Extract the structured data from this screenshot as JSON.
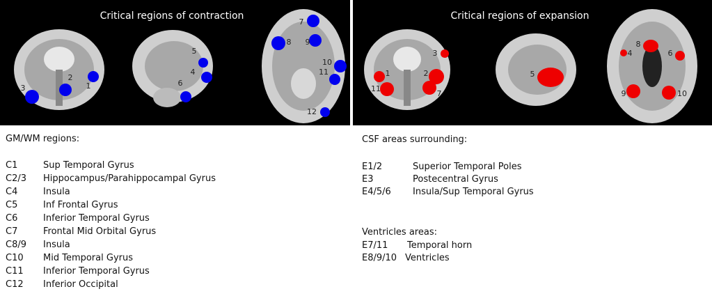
{
  "panels": [
    {
      "title": "Critical regions of contraction",
      "markers": [
        "1",
        "2",
        "3",
        "5",
        "4",
        "6",
        "7",
        "8",
        "9",
        "10",
        "11",
        "12"
      ]
    },
    {
      "title": "Critical regions of expansion",
      "markers": [
        "1",
        "11",
        "2",
        "7",
        "3",
        "5",
        "8",
        "4",
        "6",
        "9",
        "10"
      ]
    }
  ],
  "legend_left": {
    "heading": "GM/WM regions:",
    "items": [
      {
        "code": "C1",
        "name": "Sup Temporal Gyrus"
      },
      {
        "code": "C2/3",
        "name": "Hippocampus/Parahippocampal Gyrus"
      },
      {
        "code": "C4",
        "name": "Insula"
      },
      {
        "code": "C5",
        "name": "Inf Frontal Gyrus"
      },
      {
        "code": "C6",
        "name": "Inferior Temporal Gyrus"
      },
      {
        "code": "C7",
        "name": "Frontal Mid Orbital Gyrus"
      },
      {
        "code": "C8/9",
        "name": "Insula"
      },
      {
        "code": "C10",
        "name": "Mid Temporal Gyrus"
      },
      {
        "code": "C11",
        "name": "Inferior Temporal Gyrus"
      },
      {
        "code": "C12",
        "name": "Inferior Occipital"
      }
    ]
  },
  "legend_right": {
    "heading": "CSF areas surrounding:",
    "items": [
      {
        "code": "E1/2",
        "name": "Superior Temporal Poles"
      },
      {
        "code": "E3",
        "name": "Postecentral Gyrus"
      },
      {
        "code": "E4/5/6",
        "name": "Insula/Sup Temporal Gyrus"
      }
    ],
    "subheading": "Ventricles areas:",
    "items2": [
      {
        "code": "E7/11",
        "name": "Temporal horn"
      },
      {
        "code": "E8/9/10",
        "name": "Ventricles"
      }
    ]
  }
}
